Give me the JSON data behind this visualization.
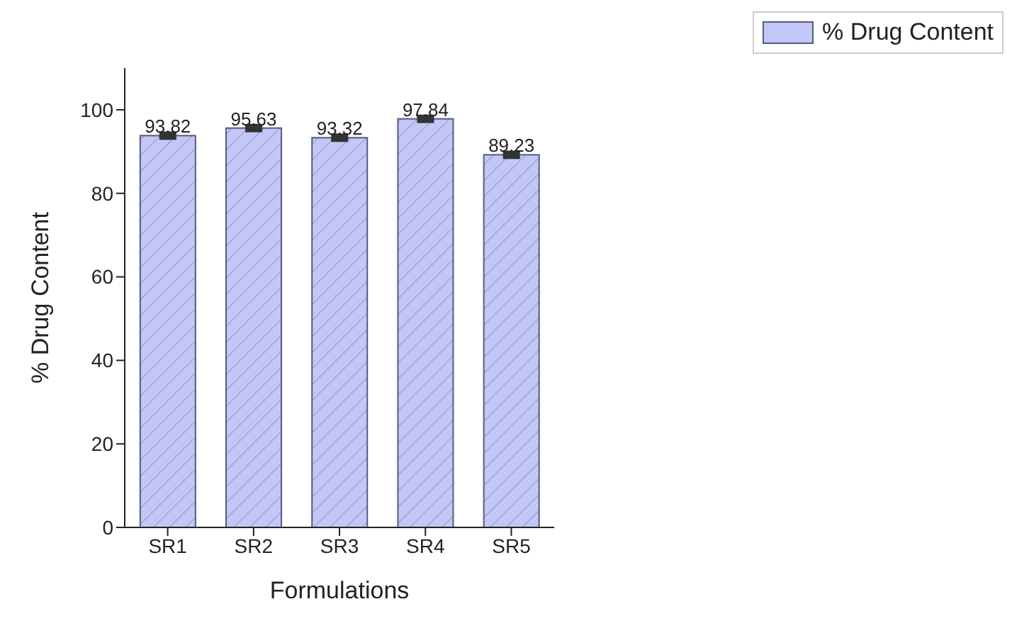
{
  "chart_data": {
    "type": "bar",
    "xlabel": "Formulations",
    "ylabel": "% Drug Content",
    "categories": [
      "SR1",
      "SR2",
      "SR3",
      "SR4",
      "SR5"
    ],
    "series": [
      {
        "name": "% Drug Content",
        "color": "#c3c7f7",
        "values": [
          93.82,
          95.63,
          93.32,
          97.84,
          89.23
        ],
        "errors": [
          0.5,
          0.5,
          0.5,
          0.5,
          0.5
        ]
      }
    ],
    "ylim": [
      0,
      110
    ],
    "yticks": [
      0,
      20,
      40,
      60,
      80,
      100
    ],
    "data_labels": true,
    "legend": "top right",
    "grid": false
  }
}
